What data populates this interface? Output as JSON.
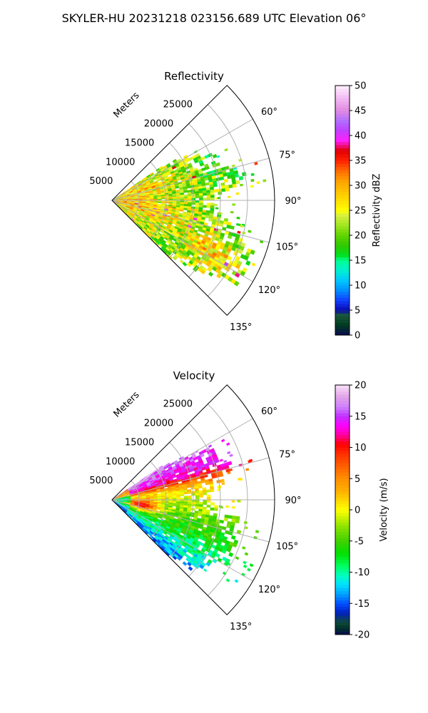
{
  "figure": {
    "suptitle": "SKYLER-HU  20231218  023156.689 UTC Elevation 06°"
  },
  "chart_data": [
    {
      "type": "heatmap",
      "title": "Reflectivity",
      "radial_label": "Meters",
      "range_ticks": [
        5000,
        10000,
        15000,
        20000,
        25000
      ],
      "range_max": 30000,
      "azimuth_ticks": [
        "60°",
        "75°",
        "90°",
        "105°",
        "120°",
        "135°"
      ],
      "azimuth_range_deg": [
        45,
        135
      ],
      "colorbar": {
        "label": "Reflectivity dBZ",
        "range": [
          0,
          50
        ],
        "ticks": [
          0,
          5,
          10,
          15,
          20,
          25,
          30,
          35,
          40,
          45,
          50
        ],
        "colormap": "NWSRef"
      },
      "dominant_values": "mostly 18–28 dBZ, isolated cores 30–38 dBZ near radar and at ~20 km / 115°"
    },
    {
      "type": "heatmap",
      "title": "Velocity",
      "radial_label": "Meters",
      "range_ticks": [
        5000,
        10000,
        15000,
        20000,
        25000
      ],
      "range_max": 30000,
      "azimuth_ticks": [
        "60°",
        "75°",
        "90°",
        "105°",
        "120°",
        "135°"
      ],
      "azimuth_range_deg": [
        45,
        135
      ],
      "colorbar": {
        "label": "Velocity (m/s)",
        "range": [
          -20,
          20
        ],
        "ticks": [
          -20,
          -15,
          -10,
          -5,
          0,
          5,
          10,
          15,
          20
        ],
        "colormap": "NWSVel"
      },
      "dominant_values": "+10 to +17 m/s in the north sector, 0 to -7 m/s at mid azimuths, -10 to -15 m/s in the south sector"
    }
  ]
}
